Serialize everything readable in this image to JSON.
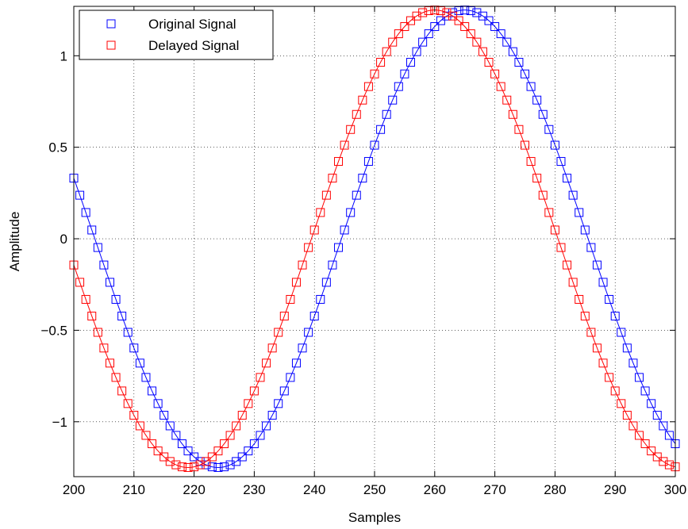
{
  "chart_data": {
    "type": "line",
    "title": "",
    "xlabel": "Samples",
    "ylabel": "Amplitude",
    "xlim": [
      200,
      300
    ],
    "ylim": [
      -1.3,
      1.27
    ],
    "xticks": [
      200,
      210,
      220,
      230,
      240,
      250,
      260,
      270,
      280,
      290,
      300
    ],
    "yticks": [
      -1,
      -0.5,
      0,
      0.5,
      1
    ],
    "ytick_labels": [
      "−1",
      "−0.5",
      "0",
      "0.5",
      "1"
    ],
    "grid": true,
    "legend_position": "top-left",
    "marker": "square",
    "series": [
      {
        "name": "Original Signal",
        "color": "#0000ff",
        "amplitude": 1.25,
        "period_samples": 82,
        "peak_at_sample": 265,
        "x_start": 200,
        "x_end": 300,
        "x_step": 1
      },
      {
        "name": "Delayed Signal",
        "color": "#ff0000",
        "amplitude": 1.25,
        "period_samples": 82,
        "peak_at_sample": 260,
        "x_start": 200,
        "x_end": 300,
        "x_step": 1
      }
    ]
  }
}
